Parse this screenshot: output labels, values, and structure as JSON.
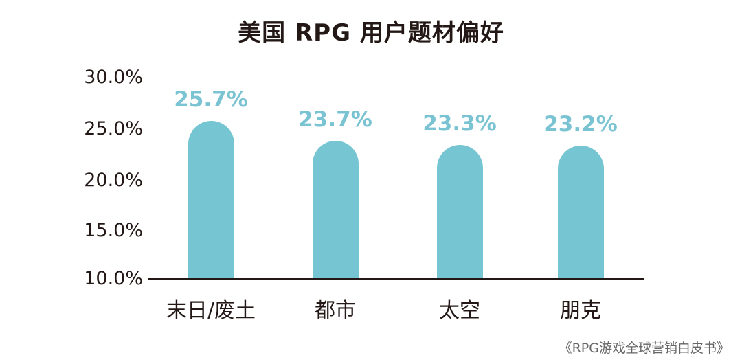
{
  "chart_data": {
    "type": "bar",
    "title": "美国 RPG 用户题材偏好",
    "xlabel": "",
    "ylabel": "",
    "categories": [
      "末日/废土",
      "都市",
      "太空",
      "朋克"
    ],
    "values": [
      25.7,
      23.7,
      23.3,
      23.2
    ],
    "value_labels": [
      "25.7%",
      "23.7%",
      "23.3%",
      "23.2%"
    ],
    "ylim": [
      10.0,
      30.0
    ],
    "yticks": [
      "30.0%",
      "25.0%",
      "20.0%",
      "15.0%",
      "10.0%"
    ],
    "grid": false,
    "legend": null,
    "bar_color": "#76C5D3",
    "label_color": "#7AC3D2",
    "source": "《RPG游戏全球营销白皮书》"
  }
}
